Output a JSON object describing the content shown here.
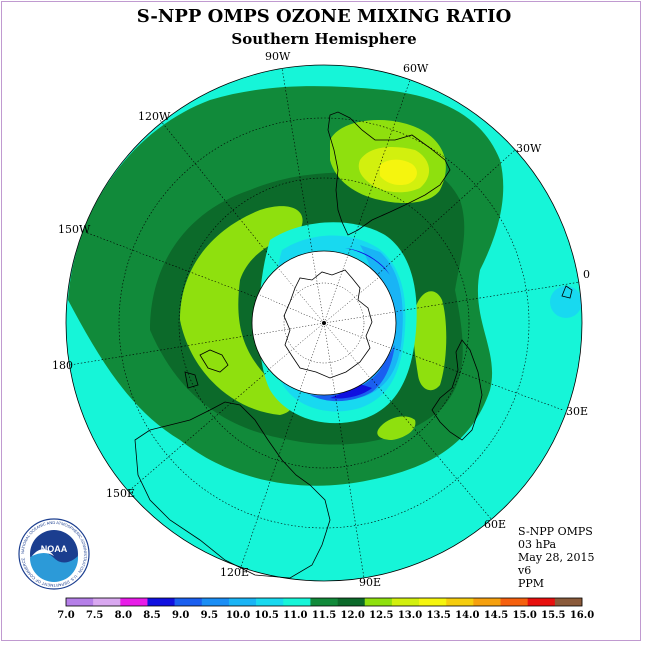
{
  "title": "S-NPP OMPS OZONE MIXING RATIO",
  "subtitle": "Southern Hemisphere",
  "longitude_labels": {
    "w90": "90W",
    "w60": "60W",
    "w30": "30W",
    "w120": "120W",
    "w150": "150W",
    "zero": "0",
    "e180": "180",
    "e30": "30E",
    "e150": "150E",
    "e60": "60E",
    "e120": "120E",
    "e90": "90E"
  },
  "info": {
    "instrument": "S-NPP OMPS",
    "pressure": "03 hPa",
    "date": "May 28, 2015",
    "version": "v6",
    "units": "PPM"
  },
  "logo": {
    "text": "NOAA",
    "ring_text": "NATIONAL OCEANIC AND ATMOSPHERIC ADMINISTRATION · U.S. DEPARTMENT OF COMMERCE"
  },
  "colorbar": {
    "ticks": [
      "7.0",
      "7.5",
      "8.0",
      "8.5",
      "9.0",
      "9.5",
      "10.0",
      "10.5",
      "11.0",
      "11.5",
      "12.0",
      "12.5",
      "13.0",
      "13.5",
      "14.0",
      "14.5",
      "15.0",
      "15.5",
      "16.0"
    ],
    "colors": [
      "#b57fe8",
      "#d9a8f0",
      "#e81ce8",
      "#1010e0",
      "#1a5ff0",
      "#1a8ef5",
      "#19b4f5",
      "#18d9f0",
      "#16f5d8",
      "#118a3a",
      "#0c6a2a",
      "#8fe00e",
      "#d2f00e",
      "#f5f50e",
      "#f5cd0e",
      "#f5a00e",
      "#f5600e",
      "#e8100e",
      "#8a5a3a"
    ]
  }
}
